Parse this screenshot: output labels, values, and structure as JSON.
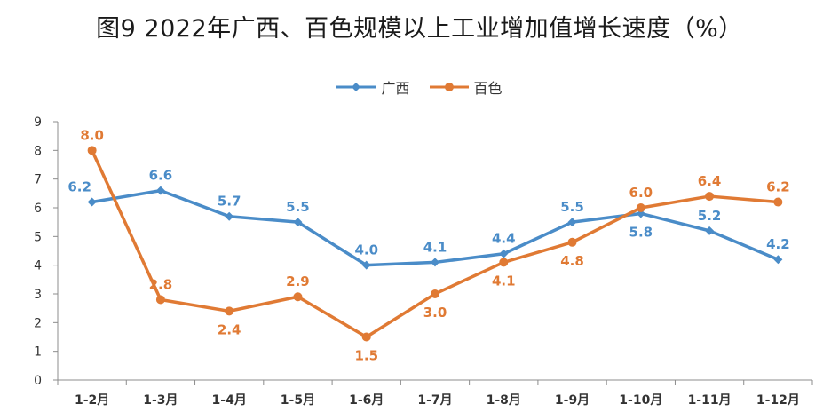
{
  "chart_data": {
    "type": "line",
    "title": "图9 2022年广西、百色规模以上工业增加值增长速度（%）",
    "categories": [
      "1-2月",
      "1-3月",
      "1-4月",
      "1-5月",
      "1-6月",
      "1-7月",
      "1-8月",
      "1-9月",
      "1-10月",
      "1-11月",
      "1-12月"
    ],
    "series": [
      {
        "name": "广西",
        "color": "#4a8cc8",
        "marker": "diamond",
        "values": [
          6.2,
          6.6,
          5.7,
          5.5,
          4.0,
          4.1,
          4.4,
          5.5,
          5.8,
          5.2,
          4.2
        ]
      },
      {
        "name": "百色",
        "color": "#e07a34",
        "marker": "circle",
        "values": [
          8.0,
          2.8,
          2.4,
          2.9,
          1.5,
          3.0,
          4.1,
          4.8,
          6.0,
          6.4,
          6.2
        ]
      }
    ],
    "ylim": [
      0,
      9
    ],
    "yticks": [
      0,
      1,
      2,
      3,
      4,
      5,
      6,
      7,
      8,
      9
    ],
    "xlabel": "",
    "ylabel": "",
    "legend_position": "top-center",
    "grid": false,
    "data_labels": true
  }
}
